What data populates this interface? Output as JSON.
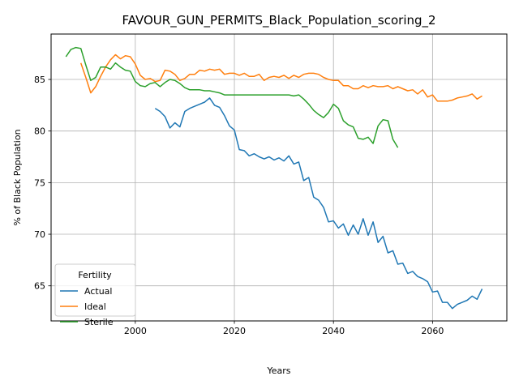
{
  "chart_data": {
    "type": "line",
    "title": "FAVOUR_GUN_PERMITS_Black_Population_scoring_2",
    "xlabel": "Years",
    "ylabel": "% of Black Population",
    "xlim": [
      1983,
      2075
    ],
    "ylim": [
      61.6,
      89.4
    ],
    "x_ticks": [
      2000,
      2020,
      2040,
      2060
    ],
    "y_ticks": [
      65,
      70,
      75,
      80,
      85
    ],
    "grid": true,
    "legend": {
      "title": "Fertility",
      "placement": "lower-left"
    },
    "series": [
      {
        "name": "Actual",
        "color": "#1f77b4",
        "x": [
          2004,
          2005,
          2006,
          2007,
          2008,
          2009,
          2010,
          2011,
          2012,
          2013,
          2014,
          2015,
          2016,
          2017,
          2018,
          2019,
          2020,
          2021,
          2022,
          2023,
          2024,
          2025,
          2026,
          2027,
          2028,
          2029,
          2030,
          2031,
          2032,
          2033,
          2034,
          2035,
          2036,
          2037,
          2038,
          2039,
          2040,
          2041,
          2042,
          2043,
          2044,
          2045,
          2046,
          2047,
          2048,
          2049,
          2050,
          2051,
          2052,
          2053,
          2054,
          2055,
          2056,
          2057,
          2058,
          2059,
          2060,
          2061,
          2062,
          2063,
          2064,
          2065,
          2066,
          2067,
          2068,
          2069,
          2070
        ],
        "y": [
          82.2,
          81.9,
          81.4,
          80.3,
          80.8,
          80.4,
          81.9,
          82.2,
          82.4,
          82.6,
          82.8,
          83.2,
          82.5,
          82.3,
          81.5,
          80.5,
          80.1,
          78.2,
          78.1,
          77.6,
          77.8,
          77.5,
          77.3,
          77.5,
          77.2,
          77.4,
          77.1,
          77.6,
          76.8,
          77.0,
          75.2,
          75.5,
          73.6,
          73.3,
          72.6,
          71.2,
          71.3,
          70.6,
          71.0,
          69.9,
          70.9,
          70.0,
          71.5,
          69.9,
          71.2,
          69.2,
          69.8,
          68.2,
          68.4,
          67.1,
          67.2,
          66.2,
          66.4,
          65.9,
          65.7,
          65.4,
          64.4,
          64.5,
          63.4,
          63.4,
          62.8,
          63.2,
          63.4,
          63.6,
          64.0,
          63.7,
          64.7
        ]
      },
      {
        "name": "Ideal",
        "color": "#ff7f0e",
        "x": [
          1989,
          1990,
          1991,
          1992,
          1993,
          1994,
          1995,
          1996,
          1997,
          1998,
          1999,
          2000,
          2001,
          2002,
          2003,
          2004,
          2005,
          2006,
          2007,
          2008,
          2009,
          2010,
          2011,
          2012,
          2013,
          2014,
          2015,
          2016,
          2017,
          2018,
          2019,
          2020,
          2021,
          2022,
          2023,
          2024,
          2025,
          2026,
          2027,
          2028,
          2029,
          2030,
          2031,
          2032,
          2033,
          2034,
          2035,
          2036,
          2037,
          2038,
          2039,
          2040,
          2041,
          2042,
          2043,
          2044,
          2045,
          2046,
          2047,
          2048,
          2049,
          2050,
          2051,
          2052,
          2053,
          2054,
          2055,
          2056,
          2057,
          2058,
          2059,
          2060,
          2061,
          2062,
          2063,
          2064,
          2065,
          2066,
          2067,
          2068,
          2069,
          2070
        ],
        "y": [
          86.6,
          85.2,
          83.7,
          84.3,
          85.3,
          86.2,
          86.9,
          87.4,
          87.0,
          87.3,
          87.2,
          86.5,
          85.4,
          85.0,
          85.1,
          84.8,
          84.9,
          85.9,
          85.8,
          85.5,
          84.9,
          85.1,
          85.5,
          85.5,
          85.9,
          85.8,
          86.0,
          85.9,
          86.0,
          85.5,
          85.6,
          85.6,
          85.4,
          85.6,
          85.3,
          85.3,
          85.5,
          84.9,
          85.2,
          85.3,
          85.2,
          85.4,
          85.1,
          85.4,
          85.2,
          85.5,
          85.6,
          85.6,
          85.5,
          85.2,
          85.0,
          84.9,
          84.9,
          84.4,
          84.4,
          84.1,
          84.1,
          84.4,
          84.2,
          84.4,
          84.3,
          84.3,
          84.4,
          84.1,
          84.3,
          84.1,
          83.9,
          84.0,
          83.6,
          84.0,
          83.3,
          83.5,
          82.9,
          82.9,
          82.9,
          83.0,
          83.2,
          83.3,
          83.4,
          83.6,
          83.1,
          83.4
        ]
      },
      {
        "name": "Sterile",
        "color": "#2ca02c",
        "x": [
          1986,
          1987,
          1988,
          1989,
          1990,
          1991,
          1992,
          1993,
          1994,
          1995,
          1996,
          1997,
          1998,
          1999,
          2000,
          2001,
          2002,
          2003,
          2004,
          2005,
          2006,
          2007,
          2008,
          2009,
          2010,
          2011,
          2012,
          2013,
          2014,
          2015,
          2016,
          2017,
          2018,
          2019,
          2020,
          2021,
          2022,
          2023,
          2024,
          2025,
          2026,
          2027,
          2028,
          2029,
          2030,
          2031,
          2032,
          2033,
          2034,
          2035,
          2036,
          2037,
          2038,
          2039,
          2040,
          2041,
          2042,
          2043,
          2044,
          2045,
          2046,
          2047,
          2048,
          2049,
          2050,
          2051,
          2052,
          2053
        ],
        "y": [
          87.2,
          87.9,
          88.1,
          88.0,
          86.4,
          84.9,
          85.2,
          86.2,
          86.2,
          86.0,
          86.6,
          86.2,
          85.9,
          85.8,
          84.8,
          84.4,
          84.3,
          84.6,
          84.7,
          84.3,
          84.7,
          85.0,
          84.9,
          84.6,
          84.2,
          84.0,
          84.0,
          84.0,
          83.9,
          83.9,
          83.8,
          83.7,
          83.5,
          83.5,
          83.5,
          83.5,
          83.5,
          83.5,
          83.5,
          83.5,
          83.5,
          83.5,
          83.5,
          83.5,
          83.5,
          83.5,
          83.4,
          83.5,
          83.1,
          82.6,
          82.0,
          81.6,
          81.3,
          81.8,
          82.6,
          82.2,
          81.0,
          80.6,
          80.4,
          79.3,
          79.2,
          79.4,
          78.8,
          80.5,
          81.1,
          81.0,
          79.2,
          78.4
        ]
      }
    ]
  }
}
